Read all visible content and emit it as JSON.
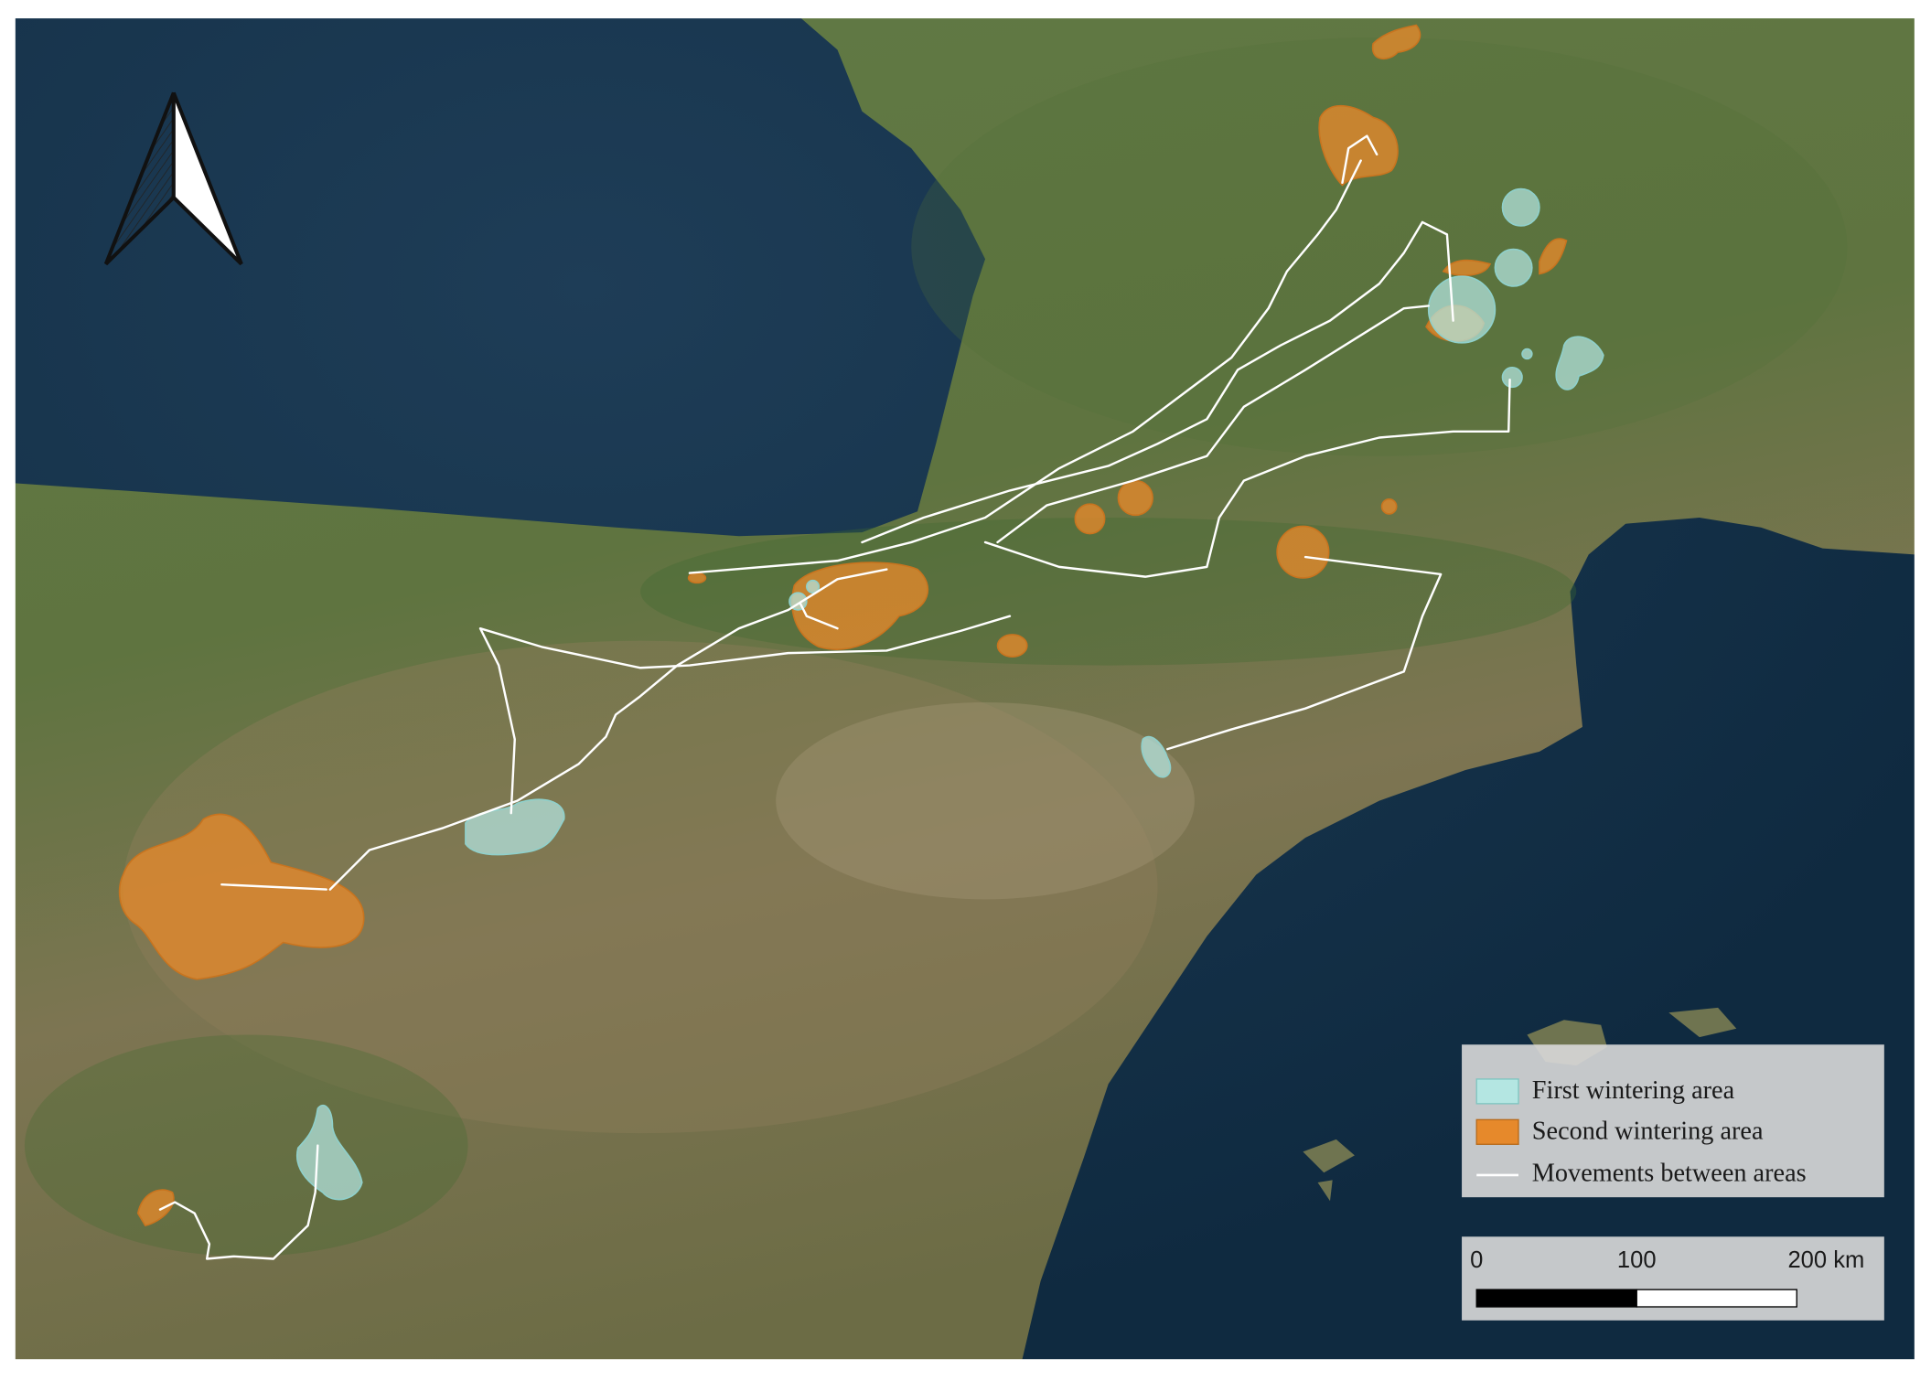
{
  "legend": {
    "items": [
      "First wintering area",
      "Second wintering area",
      "Movements between areas"
    ]
  },
  "scale_bar": {
    "labels": [
      "0",
      "100",
      "200 km"
    ]
  }
}
